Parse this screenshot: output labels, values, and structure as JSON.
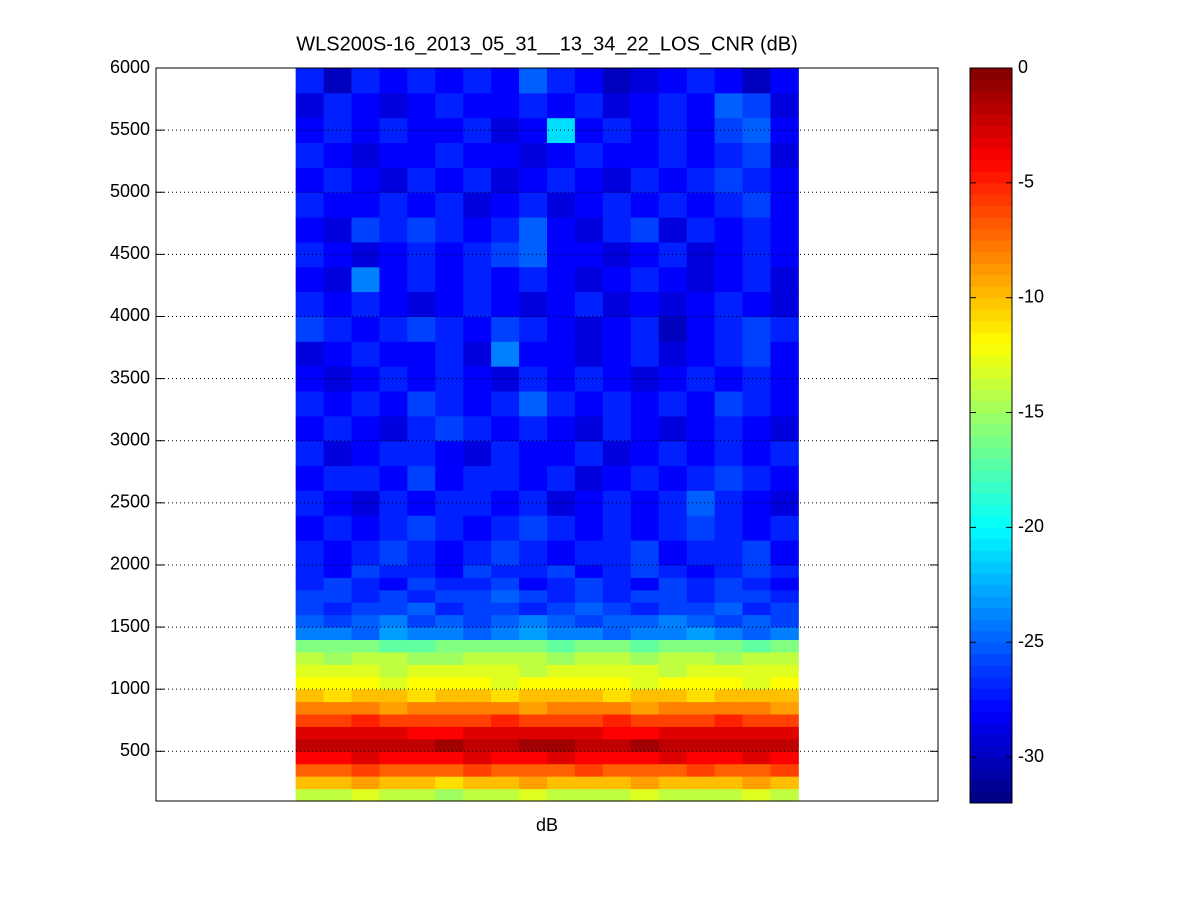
{
  "chart_data": {
    "type": "heatmap",
    "title": "WLS200S-16_2013_05_31__13_34_22_LOS_CNR (dB)",
    "xlabel": "dB",
    "xlim": [
      0,
      28
    ],
    "ylim": [
      100,
      6000
    ],
    "yticks": [
      500,
      1000,
      1500,
      2000,
      2500,
      3000,
      3500,
      4000,
      4500,
      5000,
      5500,
      6000
    ],
    "grid": true,
    "colormap": "jet",
    "clim": [
      -32,
      0
    ],
    "cticks": [
      0,
      -5,
      -10,
      -15,
      -20,
      -25,
      -30
    ],
    "x_edges": [
      5,
      6,
      7,
      8,
      9,
      10,
      11,
      12,
      13,
      14,
      15,
      16,
      17,
      18,
      19,
      20,
      21,
      22,
      23
    ],
    "y_edges": [
      100,
      200,
      300,
      400,
      500,
      600,
      700,
      800,
      900,
      1000,
      1100,
      1200,
      1300,
      1400,
      1500,
      1600,
      1700,
      1800,
      1900,
      2000,
      2200,
      2400,
      2600,
      2800,
      3000,
      3200,
      3400,
      3600,
      3800,
      4000,
      4200,
      4400,
      4600,
      4800,
      5000,
      5200,
      5400,
      5600,
      5800,
      6000
    ],
    "values": [
      [
        -14,
        -14,
        -13,
        -14,
        -14,
        -15,
        -14,
        -14,
        -13,
        -14,
        -14,
        -14,
        -13,
        -14,
        -14,
        -14,
        -13,
        -14
      ],
      [
        -10,
        -10,
        -9,
        -10,
        -10,
        -11,
        -10,
        -10,
        -9,
        -10,
        -10,
        -10,
        -9,
        -10,
        -10,
        -10,
        -9,
        -10
      ],
      [
        -7,
        -7,
        -6,
        -7,
        -7,
        -7,
        -6,
        -7,
        -7,
        -7,
        -6,
        -7,
        -7,
        -7,
        -6,
        -7,
        -7,
        -6
      ],
      [
        -4,
        -4,
        -3,
        -4,
        -4,
        -4,
        -3,
        -4,
        -4,
        -3,
        -4,
        -4,
        -4,
        -3,
        -4,
        -4,
        -3,
        -4
      ],
      [
        -2,
        -2,
        -2,
        -2,
        -2,
        -1,
        -2,
        -2,
        -1,
        -1,
        -2,
        -2,
        -1,
        -2,
        -2,
        -2,
        -2,
        -2
      ],
      [
        -3,
        -3,
        -3,
        -3,
        -4,
        -4,
        -3,
        -3,
        -3,
        -3,
        -3,
        -4,
        -4,
        -3,
        -3,
        -3,
        -3,
        -3
      ],
      [
        -6,
        -6,
        -5,
        -6,
        -6,
        -6,
        -6,
        -5,
        -6,
        -6,
        -6,
        -5,
        -6,
        -6,
        -6,
        -5,
        -6,
        -6
      ],
      [
        -8,
        -8,
        -8,
        -9,
        -8,
        -8,
        -8,
        -8,
        -9,
        -8,
        -8,
        -8,
        -9,
        -8,
        -8,
        -8,
        -8,
        -9
      ],
      [
        -10,
        -11,
        -10,
        -10,
        -11,
        -10,
        -10,
        -11,
        -10,
        -10,
        -10,
        -11,
        -10,
        -10,
        -11,
        -10,
        -10,
        -10
      ],
      [
        -12,
        -12,
        -12,
        -13,
        -12,
        -12,
        -12,
        -13,
        -12,
        -12,
        -12,
        -12,
        -13,
        -12,
        -12,
        -12,
        -13,
        -12
      ],
      [
        -13,
        -13,
        -13,
        -14,
        -13,
        -13,
        -13,
        -13,
        -14,
        -13,
        -13,
        -13,
        -13,
        -14,
        -13,
        -13,
        -13,
        -13
      ],
      [
        -14,
        -15,
        -14,
        -14,
        -15,
        -15,
        -14,
        -14,
        -14,
        -15,
        -14,
        -14,
        -15,
        -14,
        -14,
        -15,
        -14,
        -14
      ],
      [
        -16,
        -16,
        -16,
        -17,
        -17,
        -16,
        -16,
        -16,
        -16,
        -17,
        -16,
        -16,
        -17,
        -16,
        -16,
        -16,
        -17,
        -16
      ],
      [
        -24,
        -24,
        -25,
        -23,
        -24,
        -24,
        -25,
        -24,
        -23,
        -24,
        -24,
        -25,
        -24,
        -24,
        -23,
        -24,
        -25,
        -24
      ],
      [
        -25,
        -26,
        -25,
        -24,
        -26,
        -25,
        -26,
        -25,
        -24,
        -25,
        -26,
        -25,
        -25,
        -24,
        -25,
        -26,
        -25,
        -26
      ],
      [
        -26,
        -27,
        -26,
        -26,
        -25,
        -27,
        -26,
        -26,
        -27,
        -26,
        -25,
        -26,
        -27,
        -26,
        -26,
        -25,
        -27,
        -26
      ],
      [
        -26,
        -26,
        -27,
        -26,
        -27,
        -26,
        -26,
        -25,
        -26,
        -27,
        -26,
        -27,
        -26,
        -26,
        -27,
        -26,
        -26,
        -27
      ],
      [
        -27,
        -26,
        -27,
        -28,
        -26,
        -27,
        -27,
        -26,
        -28,
        -27,
        -26,
        -27,
        -28,
        -26,
        -27,
        -26,
        -27,
        -28
      ],
      [
        -27,
        -28,
        -26,
        -27,
        -27,
        -28,
        -26,
        -27,
        -27,
        -26,
        -28,
        -27,
        -26,
        -27,
        -28,
        -27,
        -26,
        -27
      ],
      [
        -27,
        -28,
        -27,
        -26,
        -27,
        -28,
        -27,
        -26,
        -27,
        -28,
        -27,
        -27,
        -26,
        -28,
        -27,
        -27,
        -26,
        -28
      ],
      [
        -28,
        -27,
        -28,
        -27,
        -26,
        -27,
        -28,
        -27,
        -26,
        -27,
        -28,
        -27,
        -28,
        -27,
        -26,
        -27,
        -28,
        -27
      ],
      [
        -27,
        -28,
        -29,
        -27,
        -28,
        -27,
        -27,
        -28,
        -27,
        -29,
        -28,
        -27,
        -28,
        -27,
        -25,
        -27,
        -28,
        -29
      ],
      [
        -28,
        -27,
        -27,
        -28,
        -26,
        -28,
        -27,
        -27,
        -28,
        -27,
        -29,
        -28,
        -27,
        -28,
        -27,
        -26,
        -27,
        -28
      ],
      [
        -27,
        -29,
        -28,
        -27,
        -27,
        -28,
        -29,
        -27,
        -28,
        -28,
        -27,
        -29,
        -28,
        -27,
        -28,
        -27,
        -28,
        -27
      ],
      [
        -28,
        -27,
        -28,
        -29,
        -27,
        -26,
        -27,
        -28,
        -27,
        -28,
        -29,
        -27,
        -28,
        -29,
        -28,
        -27,
        -28,
        -29
      ],
      [
        -27,
        -28,
        -27,
        -28,
        -26,
        -27,
        -28,
        -27,
        -25,
        -27,
        -28,
        -27,
        -28,
        -27,
        -28,
        -26,
        -27,
        -28
      ],
      [
        -28,
        -29,
        -28,
        -27,
        -28,
        -27,
        -28,
        -29,
        -27,
        -28,
        -27,
        -28,
        -29,
        -28,
        -27,
        -28,
        -27,
        -28
      ],
      [
        -29,
        -28,
        -27,
        -28,
        -28,
        -27,
        -29,
        -24,
        -28,
        -28,
        -29,
        -28,
        -27,
        -29,
        -28,
        -27,
        -26,
        -28
      ],
      [
        -26,
        -27,
        -28,
        -27,
        -26,
        -27,
        -28,
        -26,
        -27,
        -28,
        -29,
        -28,
        -27,
        -30,
        -28,
        -27,
        -26,
        -27
      ],
      [
        -27,
        -28,
        -27,
        -28,
        -29,
        -28,
        -27,
        -28,
        -29,
        -28,
        -27,
        -29,
        -28,
        -29,
        -28,
        -27,
        -28,
        -29
      ],
      [
        -28,
        -29,
        -24,
        -28,
        -27,
        -28,
        -27,
        -28,
        -27,
        -28,
        -29,
        -28,
        -27,
        -28,
        -29,
        -28,
        -27,
        -29
      ],
      [
        -27,
        -28,
        -29,
        -28,
        -27,
        -28,
        -27,
        -26,
        -25,
        -28,
        -28,
        -29,
        -28,
        -27,
        -29,
        -28,
        -27,
        -28
      ],
      [
        -28,
        -29,
        -26,
        -27,
        -26,
        -27,
        -28,
        -27,
        -25,
        -28,
        -29,
        -27,
        -26,
        -29,
        -27,
        -28,
        -27,
        -28
      ],
      [
        -27,
        -28,
        -28,
        -27,
        -28,
        -27,
        -29,
        -28,
        -27,
        -29,
        -28,
        -27,
        -28,
        -27,
        -28,
        -27,
        -26,
        -28
      ],
      [
        -28,
        -27,
        -28,
        -29,
        -27,
        -28,
        -27,
        -29,
        -28,
        -27,
        -28,
        -29,
        -27,
        -28,
        -27,
        -26,
        -27,
        -28
      ],
      [
        -27,
        -28,
        -29,
        -28,
        -28,
        -27,
        -28,
        -28,
        -29,
        -28,
        -27,
        -28,
        -28,
        -27,
        -28,
        -27,
        -26,
        -29
      ],
      [
        -28,
        -27,
        -28,
        -27,
        -28,
        -28,
        -27,
        -29,
        -28,
        -21,
        -28,
        -27,
        -28,
        -27,
        -28,
        -26,
        -25,
        -28
      ],
      [
        -29,
        -27,
        -28,
        -29,
        -28,
        -27,
        -28,
        -28,
        -27,
        -28,
        -27,
        -29,
        -28,
        -27,
        -28,
        -25,
        -26,
        -29
      ],
      [
        -27,
        -30,
        -27,
        -28,
        -27,
        -28,
        -27,
        -28,
        -25,
        -27,
        -28,
        -30,
        -29,
        -28,
        -27,
        -28,
        -30,
        -28
      ]
    ]
  }
}
